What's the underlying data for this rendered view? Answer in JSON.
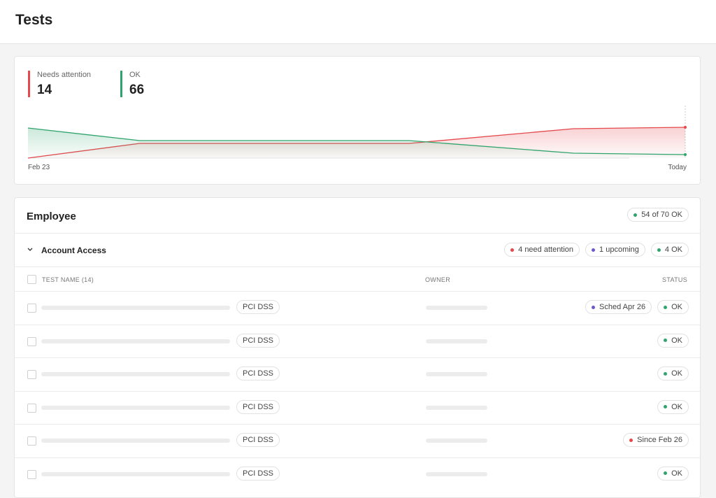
{
  "header": {
    "title": "Tests"
  },
  "summary": [
    {
      "label": "Needs attention",
      "value": 14,
      "color": "#e5484d"
    },
    {
      "label": "OK",
      "value": 66,
      "color": "#30a46c"
    }
  ],
  "trend": {
    "type": "area",
    "start_label": "Feb 23",
    "end_label": "Today",
    "x": [
      0,
      17,
      58,
      83,
      100
    ],
    "xlim": [
      0,
      100
    ],
    "ylim": [
      0,
      50
    ],
    "series": [
      {
        "name": "Needs attention",
        "color": "#e5484d",
        "values": [
          0,
          21,
          21,
          42,
          44
        ]
      },
      {
        "name": "OK",
        "color": "#30a46c",
        "values": [
          43,
          25,
          25,
          7,
          5
        ]
      }
    ]
  },
  "section": {
    "title": "Employee",
    "badge": {
      "text": "54 of 70 OK",
      "color": "#30a46c"
    }
  },
  "group": {
    "title": "Account Access",
    "badges": [
      {
        "text": "4 need attention",
        "color": "#e5484d"
      },
      {
        "text": "1 upcoming",
        "color": "#6e56cf"
      },
      {
        "text": "4 OK",
        "color": "#30a46c"
      }
    ]
  },
  "table": {
    "columns": [
      "TEST NAME (14)",
      "OWNER",
      "STATUS"
    ],
    "rows": [
      {
        "tag": "PCI DSS",
        "statuses": [
          {
            "text": "Sched Apr 26",
            "color": "#6e56cf"
          },
          {
            "text": "OK",
            "color": "#30a46c"
          }
        ]
      },
      {
        "tag": "PCI DSS",
        "statuses": [
          {
            "text": "OK",
            "color": "#30a46c"
          }
        ]
      },
      {
        "tag": "PCI DSS",
        "statuses": [
          {
            "text": "OK",
            "color": "#30a46c"
          }
        ]
      },
      {
        "tag": "PCI DSS",
        "statuses": [
          {
            "text": "OK",
            "color": "#30a46c"
          }
        ]
      },
      {
        "tag": "PCI DSS",
        "statuses": [
          {
            "text": "Since Feb 26",
            "color": "#e5484d"
          }
        ]
      },
      {
        "tag": "PCI DSS",
        "statuses": [
          {
            "text": "OK",
            "color": "#30a46c"
          }
        ]
      }
    ]
  }
}
